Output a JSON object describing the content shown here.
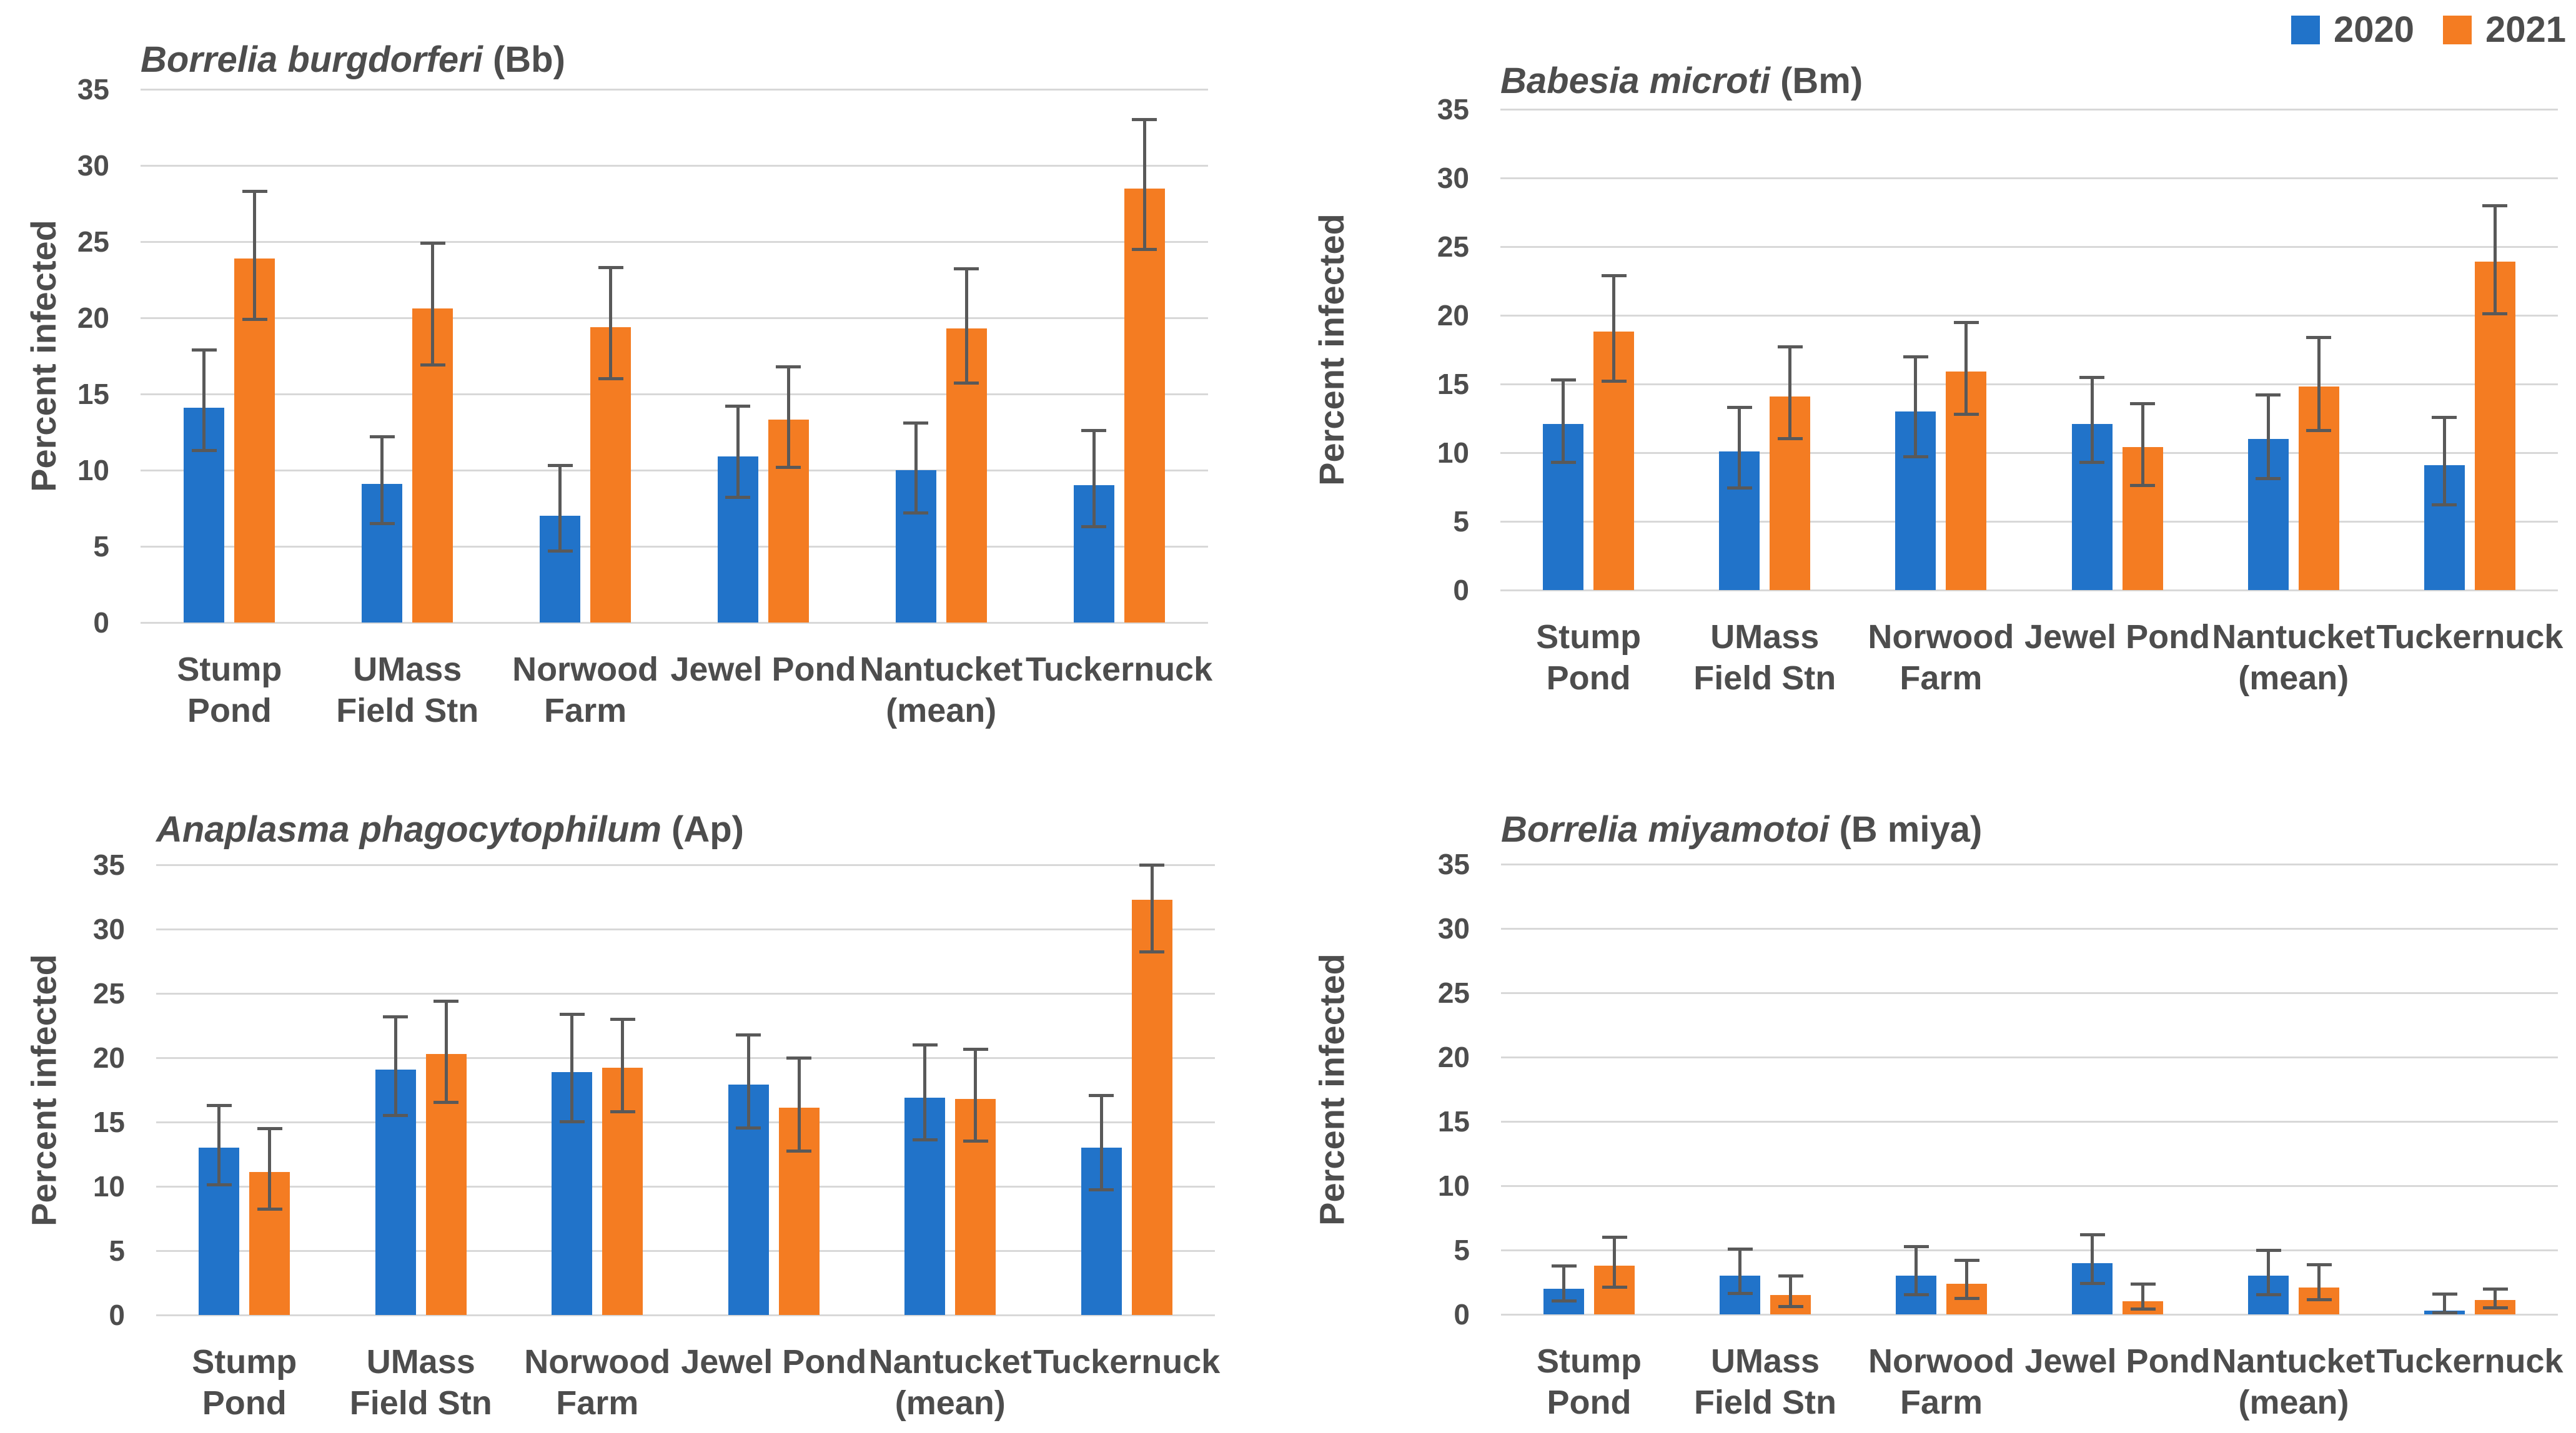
{
  "figure": {
    "text_color": "#4D4D4D",
    "gridline_color": "#D8D8D8",
    "errorbar_color": "#595959",
    "legend": [
      {
        "label": "2020",
        "color": "#2173C9"
      },
      {
        "label": "2021",
        "color": "#F47C22"
      }
    ]
  },
  "chart_data": [
    {
      "type": "bar",
      "title_italic": "Borrelia burgdorferi",
      "title_plain": " (Bb)",
      "ylabel": "Percent infected",
      "ylim": [
        0,
        35
      ],
      "yticks": [
        0,
        5,
        10,
        15,
        20,
        25,
        30,
        35
      ],
      "grid": true,
      "legend_position": "top-right-of-figure",
      "categories": [
        [
          "Stump",
          "Pond"
        ],
        [
          "UMass",
          "Field Stn"
        ],
        [
          "Norwood",
          "Farm"
        ],
        [
          "Jewel Pond"
        ],
        [
          "Nantucket",
          "(mean)"
        ],
        [
          "Tuckernuck"
        ]
      ],
      "series": [
        {
          "name": "2020",
          "color": "#2173C9",
          "values": [
            14.1,
            9.1,
            7.0,
            10.9,
            10.0,
            9.0
          ],
          "err_low": [
            11.2,
            6.4,
            4.6,
            8.1,
            7.1,
            6.2
          ],
          "err_high": [
            18.0,
            12.3,
            10.4,
            14.3,
            13.2,
            12.7
          ]
        },
        {
          "name": "2021",
          "color": "#F47C22",
          "values": [
            23.9,
            20.6,
            19.4,
            13.3,
            19.3,
            28.5
          ],
          "err_low": [
            19.8,
            16.8,
            15.9,
            10.1,
            15.6,
            24.4
          ],
          "err_high": [
            28.4,
            25.0,
            23.4,
            16.9,
            23.3,
            33.1
          ]
        }
      ]
    },
    {
      "type": "bar",
      "title_italic": "Babesia microti",
      "title_plain": " (Bm)",
      "ylabel": "Percent infected",
      "ylim": [
        0,
        35
      ],
      "yticks": [
        0,
        5,
        10,
        15,
        20,
        25,
        30,
        35
      ],
      "grid": true,
      "categories": [
        [
          "Stump",
          "Pond"
        ],
        [
          "UMass",
          "Field Stn"
        ],
        [
          "Norwood",
          "Farm"
        ],
        [
          "Jewel Pond"
        ],
        [
          "Nantucket",
          "(mean)"
        ],
        [
          "Tuckernuck"
        ]
      ],
      "series": [
        {
          "name": "2020",
          "color": "#2173C9",
          "values": [
            12.1,
            10.1,
            13.0,
            12.1,
            11.0,
            9.1
          ],
          "err_low": [
            9.2,
            7.3,
            9.6,
            9.2,
            8.0,
            6.1
          ],
          "err_high": [
            15.4,
            13.4,
            17.1,
            15.6,
            14.3,
            12.7
          ]
        },
        {
          "name": "2021",
          "color": "#F47C22",
          "values": [
            18.8,
            14.1,
            15.9,
            10.4,
            14.8,
            23.9
          ],
          "err_low": [
            15.1,
            10.9,
            12.7,
            7.5,
            11.5,
            20.0
          ],
          "err_high": [
            23.0,
            17.8,
            19.6,
            13.7,
            18.5,
            28.1
          ]
        }
      ]
    },
    {
      "type": "bar",
      "title_italic": "Anaplasma phagocytophilum",
      "title_plain": " (Ap)",
      "ylabel": "Percent infected",
      "ylim": [
        0,
        35
      ],
      "yticks": [
        0,
        5,
        10,
        15,
        20,
        25,
        30,
        35
      ],
      "grid": true,
      "categories": [
        [
          "Stump",
          "Pond"
        ],
        [
          "UMass",
          "Field Stn"
        ],
        [
          "Norwood",
          "Farm"
        ],
        [
          "Jewel Pond"
        ],
        [
          "Nantucket",
          "(mean)"
        ],
        [
          "Tuckernuck"
        ]
      ],
      "series": [
        {
          "name": "2020",
          "color": "#2173C9",
          "values": [
            13.0,
            19.1,
            18.9,
            17.9,
            16.9,
            13.0
          ],
          "err_low": [
            10.0,
            15.4,
            14.9,
            14.4,
            13.5,
            9.6
          ],
          "err_high": [
            16.4,
            23.3,
            23.5,
            21.9,
            21.1,
            17.2
          ]
        },
        {
          "name": "2021",
          "color": "#F47C22",
          "values": [
            11.1,
            20.3,
            19.2,
            16.1,
            16.8,
            32.3
          ],
          "err_low": [
            8.1,
            16.4,
            15.7,
            12.6,
            13.4,
            28.1
          ],
          "err_high": [
            14.6,
            24.5,
            23.1,
            20.1,
            20.8,
            35.1
          ]
        }
      ]
    },
    {
      "type": "bar",
      "title_italic": "Borrelia miyamotoi",
      "title_plain": " (B miya)",
      "ylabel": "Percent infected",
      "ylim": [
        0,
        35
      ],
      "yticks": [
        0,
        5,
        10,
        15,
        20,
        25,
        30,
        35
      ],
      "grid": true,
      "categories": [
        [
          "Stump",
          "Pond"
        ],
        [
          "UMass",
          "Field Stn"
        ],
        [
          "Norwood",
          "Farm"
        ],
        [
          "Jewel Pond"
        ],
        [
          "Nantucket",
          "(mean)"
        ],
        [
          "Tuckernuck"
        ]
      ],
      "series": [
        {
          "name": "2020",
          "color": "#2173C9",
          "values": [
            2.0,
            3.0,
            3.0,
            4.0,
            3.0,
            0.3
          ],
          "err_low": [
            0.9,
            1.5,
            1.4,
            2.3,
            1.4,
            0.0
          ],
          "err_high": [
            3.9,
            5.2,
            5.4,
            6.3,
            5.1,
            1.7
          ]
        },
        {
          "name": "2021",
          "color": "#F47C22",
          "values": [
            3.8,
            1.5,
            2.4,
            1.0,
            2.1,
            1.1
          ],
          "err_low": [
            2.0,
            0.5,
            1.1,
            0.3,
            1.0,
            0.4
          ],
          "err_high": [
            6.1,
            3.1,
            4.3,
            2.5,
            4.0,
            2.1
          ]
        }
      ]
    }
  ]
}
